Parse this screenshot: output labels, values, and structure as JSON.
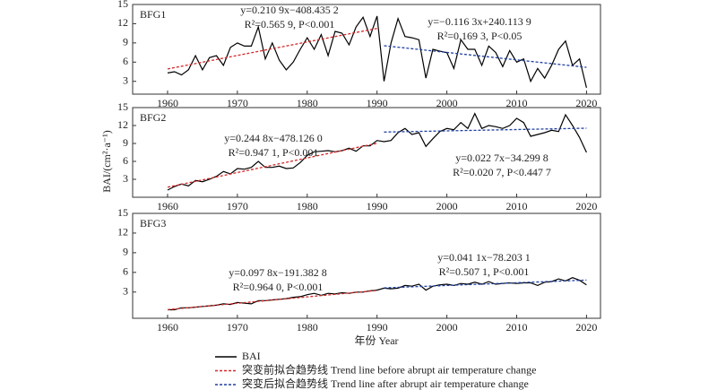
{
  "xlabel": "年份 Year",
  "ylabel": "BAI/(cm²·a⁻¹)",
  "chart_data": [
    {
      "type": "line",
      "title": "BFG1",
      "x": [
        1960,
        1961,
        1962,
        1963,
        1964,
        1965,
        1966,
        1967,
        1968,
        1969,
        1970,
        1971,
        1972,
        1973,
        1974,
        1975,
        1976,
        1977,
        1978,
        1979,
        1980,
        1981,
        1982,
        1983,
        1984,
        1985,
        1986,
        1987,
        1988,
        1989,
        1990,
        1991,
        1992,
        1993,
        1994,
        1995,
        1996,
        1997,
        1998,
        1999,
        2000,
        2001,
        2002,
        2003,
        2004,
        2005,
        2006,
        2007,
        2008,
        2009,
        2010,
        2011,
        2012,
        2013,
        2014,
        2015,
        2016,
        2017,
        2018,
        2019,
        2020
      ],
      "series": [
        {
          "name": "BAI",
          "color": "#000000",
          "values": [
            4.3,
            4.5,
            4.0,
            4.8,
            7.0,
            4.8,
            6.7,
            7.0,
            5.5,
            8.3,
            9.0,
            8.5,
            8.5,
            11.5,
            6.5,
            9.0,
            6.3,
            4.8,
            6.0,
            8.0,
            9.8,
            8.0,
            10.3,
            7.0,
            10.8,
            10.5,
            8.7,
            11.5,
            13.0,
            10.0,
            13.2,
            3.0,
            9.0,
            12.8,
            10.0,
            9.8,
            9.5,
            3.5,
            8.0,
            7.7,
            7.5,
            5.0,
            9.5,
            8.0,
            8.0,
            5.5,
            8.5,
            7.5,
            5.3,
            7.8,
            6.0,
            6.5,
            3.0,
            5.0,
            3.5,
            5.5,
            8.0,
            9.3,
            5.5,
            6.5,
            2.0
          ]
        },
        {
          "name": "突变前拟合趋势线 Trend line before abrupt air temperature change",
          "color": "#d62828",
          "dashed": true,
          "x": [
            1960,
            1990
          ],
          "values": [
            4.93,
            11.26
          ]
        },
        {
          "name": "突变后拟合趋势线 Trend line after abrupt air temperature change",
          "color": "#1f3f9f",
          "dashed": true,
          "x": [
            1991,
            2020
          ],
          "values": [
            8.56,
            5.19
          ]
        }
      ],
      "annotations": [
        [
          "y=0.210 9x−408.435 2",
          "R²=0.565 9, P<0.001"
        ],
        [
          "y=−0.116 3x+240.113 9",
          "R²=0.169 3, P<0.05"
        ]
      ],
      "xlim": [
        1955,
        2022
      ],
      "xticks": [
        1960,
        1970,
        1980,
        1990,
        2000,
        2010,
        2020
      ],
      "ylim": [
        1,
        15
      ],
      "yticks": [
        3,
        6,
        9,
        12,
        15
      ]
    },
    {
      "type": "line",
      "title": "BFG2",
      "x": [
        1960,
        1961,
        1962,
        1963,
        1964,
        1965,
        1966,
        1967,
        1968,
        1969,
        1970,
        1971,
        1972,
        1973,
        1974,
        1975,
        1976,
        1977,
        1978,
        1979,
        1980,
        1981,
        1982,
        1983,
        1984,
        1985,
        1986,
        1987,
        1988,
        1989,
        1990,
        1991,
        1992,
        1993,
        1994,
        1995,
        1996,
        1997,
        1998,
        1999,
        2000,
        2001,
        2002,
        2003,
        2004,
        2005,
        2006,
        2007,
        2008,
        2009,
        2010,
        2011,
        2012,
        2013,
        2014,
        2015,
        2016,
        2017,
        2018,
        2019,
        2020
      ],
      "series": [
        {
          "color": "#000000",
          "values": [
            1.2,
            1.8,
            2.2,
            1.9,
            2.8,
            2.6,
            3.0,
            3.5,
            4.3,
            3.9,
            4.8,
            4.7,
            5.0,
            6.0,
            5.0,
            5.0,
            5.2,
            4.8,
            4.9,
            5.8,
            7.0,
            7.6,
            7.7,
            7.8,
            7.6,
            7.8,
            8.2,
            7.7,
            8.6,
            8.6,
            9.5,
            9.3,
            9.5,
            10.8,
            11.5,
            10.5,
            10.8,
            8.5,
            9.8,
            11.0,
            11.5,
            11.3,
            12.5,
            11.5,
            14.0,
            11.5,
            12.0,
            11.8,
            11.5,
            12.0,
            13.2,
            12.5,
            10.2,
            10.5,
            10.8,
            11.2,
            11.0,
            13.8,
            12.0,
            10.0,
            7.5
          ]
        },
        {
          "color": "#d62828",
          "dashed": true,
          "x": [
            1960,
            1990
          ],
          "values": [
            1.68,
            9.03
          ]
        },
        {
          "color": "#1f3f9f",
          "dashed": true,
          "x": [
            1991,
            2020
          ],
          "values": [
            10.9,
            11.55
          ]
        }
      ],
      "annotations": [
        [
          "y=0.244 8x−478.126 0",
          "R²=0.947 1, P<0.001"
        ],
        [
          "y=0.022 7x−34.299 8",
          "R²=0.020 7, P<0.447 7"
        ]
      ],
      "xlim": [
        1955,
        2022
      ],
      "xticks": [
        1960,
        1970,
        1980,
        1990,
        2000,
        2010,
        2020
      ],
      "ylim": [
        0,
        15
      ],
      "yticks": [
        3,
        6,
        9,
        12,
        15
      ]
    },
    {
      "type": "line",
      "title": "BFG3",
      "x": [
        1960,
        1961,
        1962,
        1963,
        1964,
        1965,
        1966,
        1967,
        1968,
        1969,
        1970,
        1971,
        1972,
        1973,
        1974,
        1975,
        1976,
        1977,
        1978,
        1979,
        1980,
        1981,
        1982,
        1983,
        1984,
        1985,
        1986,
        1987,
        1988,
        1989,
        1990,
        1991,
        1992,
        1993,
        1994,
        1995,
        1996,
        1997,
        1998,
        1999,
        2000,
        2001,
        2002,
        2003,
        2004,
        2005,
        2006,
        2007,
        2008,
        2009,
        2010,
        2011,
        2012,
        2013,
        2014,
        2015,
        2016,
        2017,
        2018,
        2019,
        2020
      ],
      "series": [
        {
          "color": "#000000",
          "values": [
            0.3,
            0.3,
            0.6,
            0.6,
            0.7,
            0.8,
            0.9,
            1.0,
            1.2,
            1.1,
            1.4,
            1.3,
            1.2,
            1.7,
            1.7,
            1.8,
            1.9,
            2.0,
            2.2,
            2.3,
            2.6,
            2.8,
            2.5,
            2.8,
            2.7,
            2.9,
            2.8,
            3.0,
            3.0,
            3.2,
            3.3,
            3.6,
            3.5,
            3.6,
            4.0,
            3.9,
            4.2,
            3.3,
            3.9,
            4.1,
            4.2,
            4.0,
            4.3,
            4.2,
            4.5,
            4.2,
            4.6,
            4.2,
            4.3,
            4.4,
            4.3,
            4.4,
            4.4,
            4.0,
            4.5,
            4.6,
            5.0,
            4.7,
            5.2,
            4.8,
            4.1
          ]
        },
        {
          "color": "#d62828",
          "dashed": true,
          "x": [
            1960,
            1990
          ],
          "values": [
            0.31,
            3.24
          ]
        },
        {
          "color": "#1f3f9f",
          "dashed": true,
          "x": [
            1991,
            2020
          ],
          "values": [
            3.63,
            4.82
          ]
        }
      ],
      "annotations": [
        [
          "y=0.097 8x−191.382 8",
          "R²=0.964 0, P<0.001"
        ],
        [
          "y=0.041 1x−78.203 1",
          "R²=0.507 1, P<0.001"
        ]
      ],
      "xlim": [
        1955,
        2022
      ],
      "xticks": [
        1960,
        1970,
        1980,
        1990,
        2000,
        2010,
        2020
      ],
      "ylim": [
        -1,
        15
      ],
      "yticks": [
        3,
        6,
        9,
        12,
        15
      ]
    }
  ]
}
